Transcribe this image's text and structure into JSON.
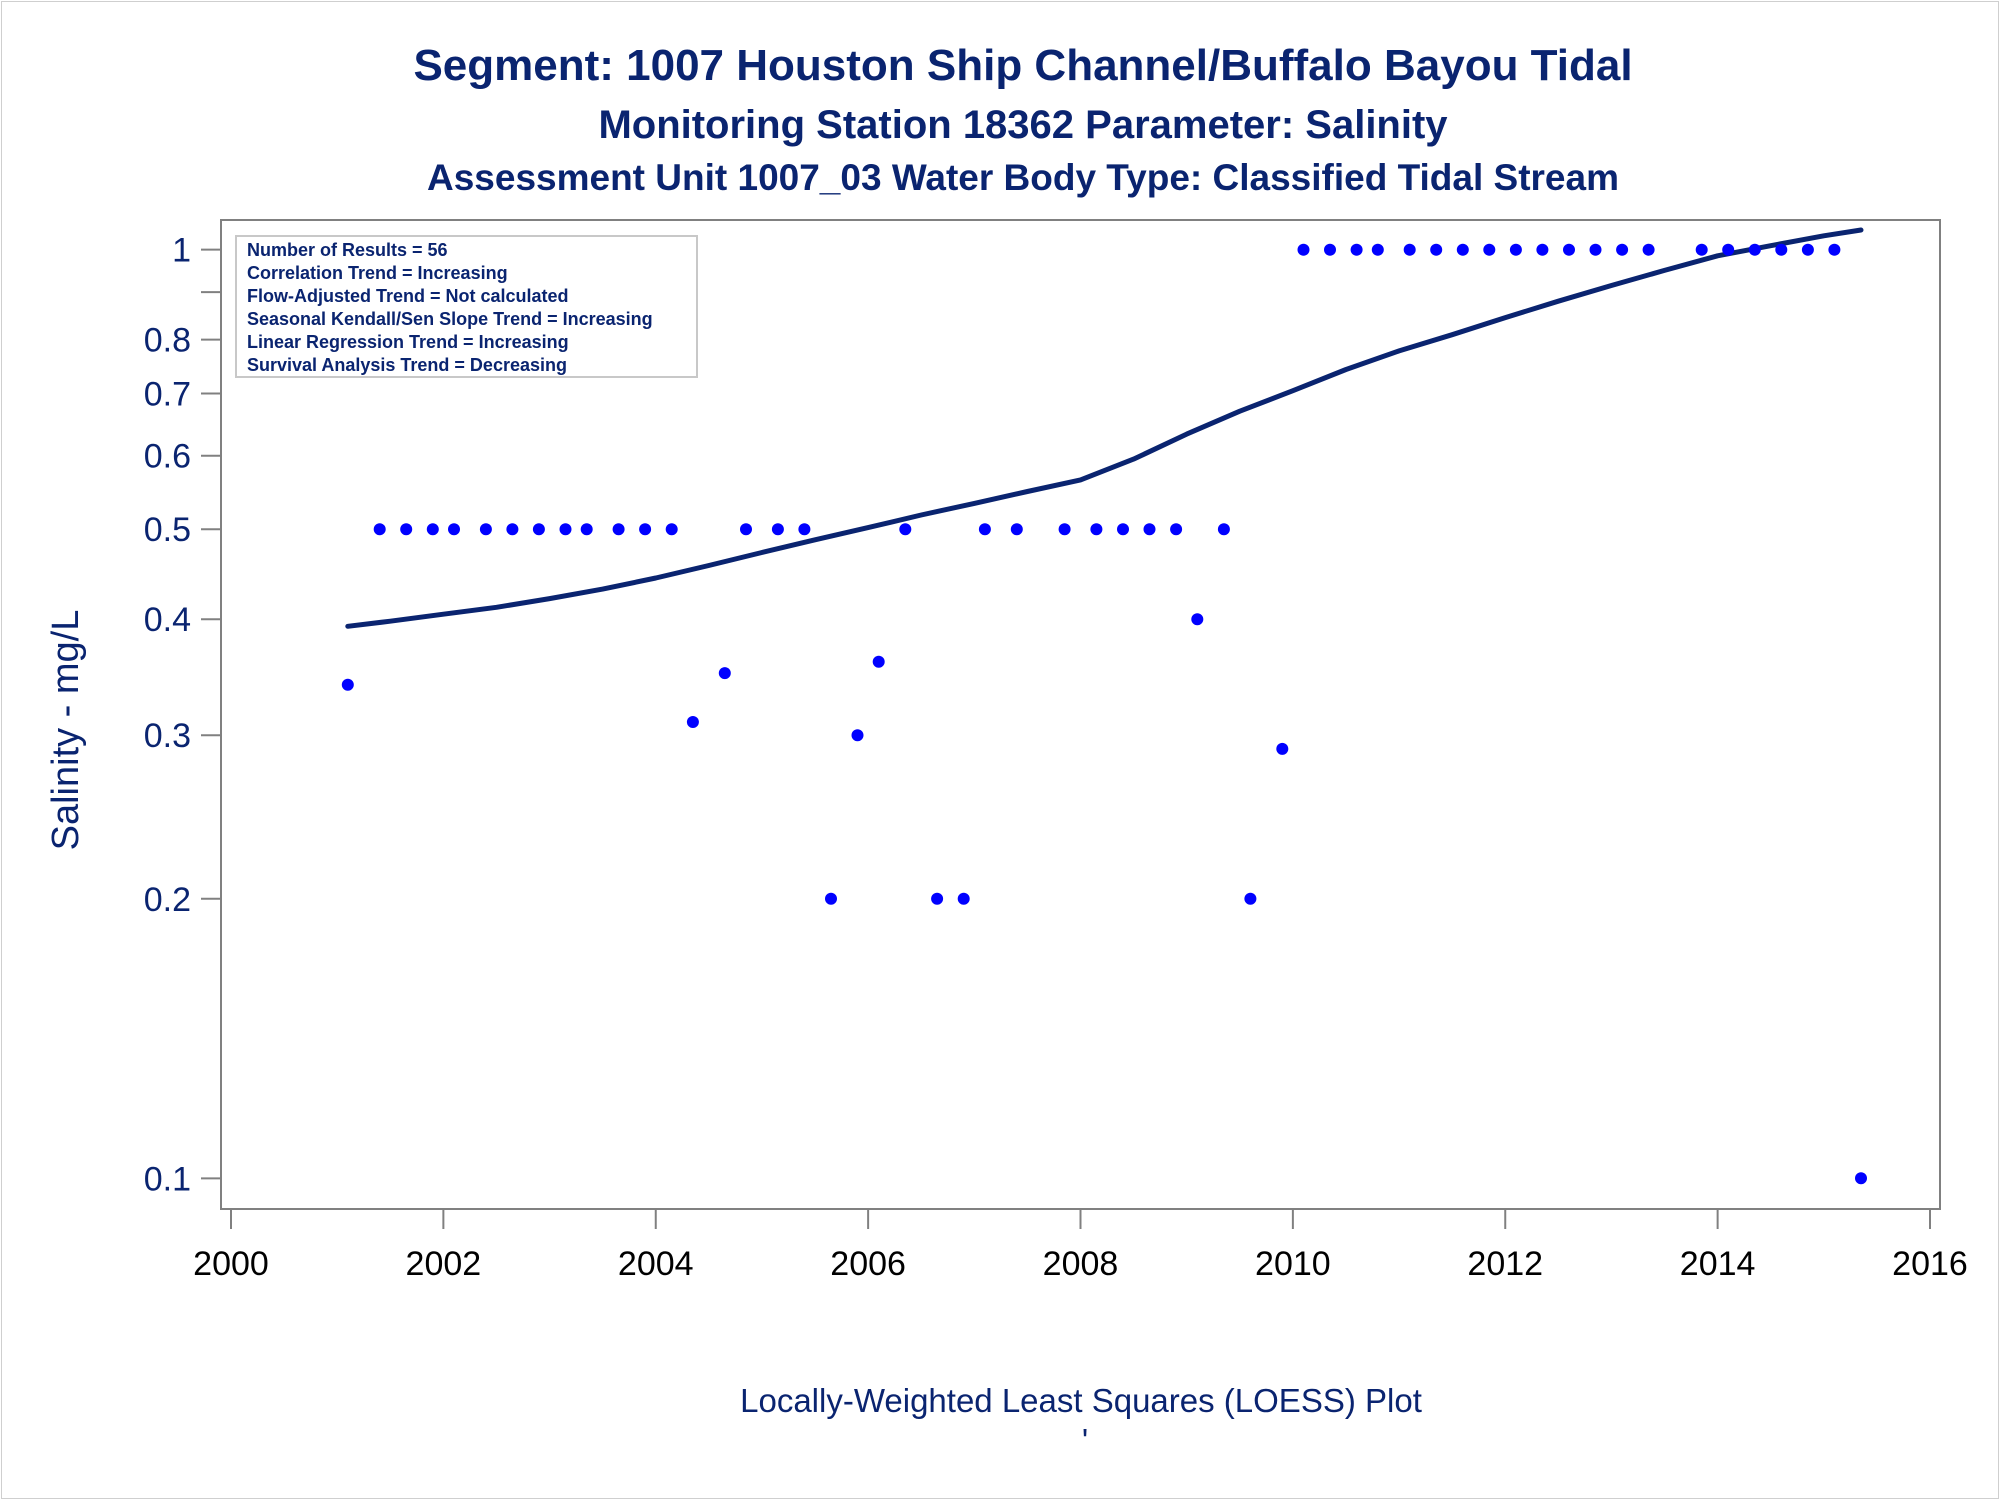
{
  "chart_data": {
    "type": "scatter",
    "title": "Segment: 1007  Houston Ship Channel/Buffalo Bayou Tidal",
    "subtitle": "Monitoring Station 18362 Parameter: Salinity",
    "subtitle2": "Assessment Unit 1007_03   Water Body Type: Classified Tidal Stream",
    "xlabel": "",
    "ylabel": "Salinity - mg/L",
    "footnote": "Locally-Weighted Least Squares (LOESS) Plot",
    "footnote_mark": "'",
    "y_scale": "log",
    "xlim": [
      2000,
      2016
    ],
    "ylim": [
      0.095,
      1.05
    ],
    "x_ticks": [
      2000,
      2002,
      2004,
      2006,
      2008,
      2010,
      2012,
      2014,
      2016
    ],
    "y_ticks": [
      0.1,
      0.2,
      0.3,
      0.4,
      0.5,
      0.6,
      0.7,
      0.8,
      1
    ],
    "y_tick_labels": [
      "0.1",
      "0.2",
      "0.3",
      "0.4",
      "0.5",
      "0.6",
      "0.7",
      "0.8",
      "1"
    ],
    "y_minor_ticks": [
      0.9
    ],
    "grid": false,
    "legend_position": "top-left",
    "stats_box": [
      "Number of Results = 56",
      "Correlation Trend = Increasing",
      "Flow-Adjusted Trend = Not calculated",
      "Seasonal Kendall/Sen Slope Trend = Increasing",
      "Linear Regression Trend = Increasing",
      "Survival Analysis Trend = Decreasing"
    ],
    "colors": {
      "points": "#0000ff",
      "line": "#0a2470",
      "text": "#0a2470",
      "axis": "#808080"
    },
    "series": [
      {
        "kind": "points",
        "values": [
          [
            2001.1,
            0.34
          ],
          [
            2001.4,
            0.5
          ],
          [
            2001.65,
            0.5
          ],
          [
            2001.9,
            0.5
          ],
          [
            2002.1,
            0.5
          ],
          [
            2002.4,
            0.5
          ],
          [
            2002.65,
            0.5
          ],
          [
            2002.9,
            0.5
          ],
          [
            2003.15,
            0.5
          ],
          [
            2003.35,
            0.5
          ],
          [
            2003.65,
            0.5
          ],
          [
            2003.9,
            0.5
          ],
          [
            2004.15,
            0.5
          ],
          [
            2004.35,
            0.31
          ],
          [
            2004.65,
            0.35
          ],
          [
            2004.85,
            0.5
          ],
          [
            2005.15,
            0.5
          ],
          [
            2005.4,
            0.5
          ],
          [
            2005.65,
            0.2
          ],
          [
            2005.9,
            0.3
          ],
          [
            2006.1,
            0.36
          ],
          [
            2006.35,
            0.5
          ],
          [
            2006.65,
            0.2
          ],
          [
            2006.9,
            0.2
          ],
          [
            2007.1,
            0.5
          ],
          [
            2007.4,
            0.5
          ],
          [
            2007.85,
            0.5
          ],
          [
            2008.15,
            0.5
          ],
          [
            2008.4,
            0.5
          ],
          [
            2008.65,
            0.5
          ],
          [
            2008.9,
            0.5
          ],
          [
            2009.1,
            0.4
          ],
          [
            2009.35,
            0.5
          ],
          [
            2009.6,
            0.2
          ],
          [
            2009.9,
            0.29
          ],
          [
            2010.1,
            1
          ],
          [
            2010.35,
            1
          ],
          [
            2010.6,
            1
          ],
          [
            2010.8,
            1
          ],
          [
            2011.1,
            1
          ],
          [
            2011.35,
            1
          ],
          [
            2011.6,
            1
          ],
          [
            2011.85,
            1
          ],
          [
            2012.1,
            1
          ],
          [
            2012.35,
            1
          ],
          [
            2012.6,
            1
          ],
          [
            2012.85,
            1
          ],
          [
            2013.1,
            1
          ],
          [
            2013.35,
            1
          ],
          [
            2013.85,
            1
          ],
          [
            2014.1,
            1
          ],
          [
            2014.35,
            1
          ],
          [
            2014.6,
            1
          ],
          [
            2014.85,
            1
          ],
          [
            2015.1,
            1
          ],
          [
            2015.35,
            0.1
          ]
        ]
      },
      {
        "kind": "loess",
        "values": [
          [
            2001.1,
            0.393
          ],
          [
            2001.5,
            0.398
          ],
          [
            2002.0,
            0.405
          ],
          [
            2002.5,
            0.412
          ],
          [
            2003.0,
            0.421
          ],
          [
            2003.5,
            0.431
          ],
          [
            2004.0,
            0.443
          ],
          [
            2004.5,
            0.457
          ],
          [
            2005.0,
            0.472
          ],
          [
            2005.5,
            0.487
          ],
          [
            2006.0,
            0.502
          ],
          [
            2006.5,
            0.518
          ],
          [
            2007.0,
            0.533
          ],
          [
            2007.5,
            0.549
          ],
          [
            2008.0,
            0.565
          ],
          [
            2008.5,
            0.595
          ],
          [
            2009.0,
            0.633
          ],
          [
            2009.5,
            0.67
          ],
          [
            2010.0,
            0.705
          ],
          [
            2010.5,
            0.743
          ],
          [
            2011.0,
            0.778
          ],
          [
            2011.5,
            0.81
          ],
          [
            2012.0,
            0.845
          ],
          [
            2012.5,
            0.88
          ],
          [
            2013.0,
            0.915
          ],
          [
            2013.5,
            0.95
          ],
          [
            2014.0,
            0.985
          ],
          [
            2014.5,
            1.01
          ],
          [
            2015.0,
            1.035
          ],
          [
            2015.35,
            1.05
          ]
        ]
      }
    ]
  }
}
